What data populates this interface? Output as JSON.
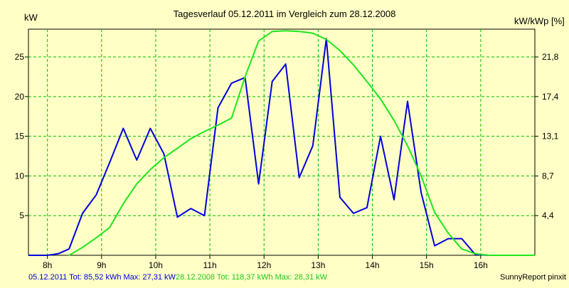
{
  "chart_data": {
    "type": "line",
    "title": "Tagesverlauf 05.12.2011 im Vergleich zum 28.12.2008",
    "ylabel_left": "kW",
    "ylabel_right": "kW/kWp [%]",
    "x_ticks": [
      "8h",
      "9h",
      "10h",
      "11h",
      "12h",
      "13h",
      "14h",
      "15h",
      "16h"
    ],
    "y_left_ticks": [
      "5",
      "10",
      "15",
      "20",
      "25"
    ],
    "y_right_ticks": [
      "4,4",
      "8,7",
      "13,1",
      "17,4",
      "21,8"
    ],
    "xlim": [
      7.65,
      17.0
    ],
    "ylim": [
      0,
      28.5
    ],
    "grid": true,
    "series": [
      {
        "name": "05.12.2011",
        "color": "#0000e0",
        "x": [
          7.65,
          8.0,
          8.2,
          8.4,
          8.65,
          8.9,
          9.15,
          9.4,
          9.65,
          9.9,
          10.15,
          10.4,
          10.65,
          10.9,
          11.15,
          11.4,
          11.65,
          11.9,
          12.15,
          12.4,
          12.65,
          12.9,
          13.15,
          13.4,
          13.65,
          13.9,
          14.15,
          14.4,
          14.65,
          14.9,
          15.15,
          15.4,
          15.65,
          15.9,
          16.15,
          17.0
        ],
        "y": [
          0,
          0,
          0.2,
          0.8,
          5.3,
          7.6,
          11.7,
          16.0,
          12.0,
          16.0,
          12.8,
          4.8,
          5.9,
          5.0,
          18.6,
          21.7,
          22.4,
          9.0,
          21.9,
          24.1,
          9.8,
          13.8,
          27.3,
          7.3,
          5.3,
          6.0,
          15.0,
          7.0,
          19.4,
          7.9,
          1.2,
          2.1,
          2.1,
          0.1,
          0,
          0
        ]
      },
      {
        "name": "28.12.2008",
        "color": "#1ee61e",
        "x": [
          8.4,
          8.65,
          8.9,
          9.15,
          9.4,
          9.65,
          9.9,
          10.15,
          10.4,
          10.65,
          10.9,
          11.15,
          11.4,
          11.65,
          11.9,
          12.15,
          12.4,
          12.65,
          12.9,
          13.15,
          13.4,
          13.65,
          13.9,
          14.15,
          14.4,
          14.65,
          14.9,
          15.15,
          15.4,
          15.65,
          15.9,
          16.15,
          16.5,
          17.0
        ],
        "y": [
          0,
          1.0,
          2.2,
          3.5,
          6.5,
          9.0,
          10.8,
          12.3,
          13.5,
          14.7,
          15.6,
          16.4,
          17.3,
          22.5,
          27.0,
          28.2,
          28.3,
          28.2,
          28.0,
          27.2,
          25.8,
          24.0,
          21.9,
          19.7,
          17.0,
          13.8,
          10.0,
          5.4,
          2.8,
          0.8,
          0.2,
          0,
          0,
          0
        ]
      }
    ]
  },
  "footer": {
    "series1_text": "05.12.2011 Tot: 85,52 kWh Max: 27,31 kW",
    "series2_text": "28.12.2008 Tot: 118,37 kWh Max: 28,31 kW",
    "credit": "SunnyReport pinxit"
  }
}
